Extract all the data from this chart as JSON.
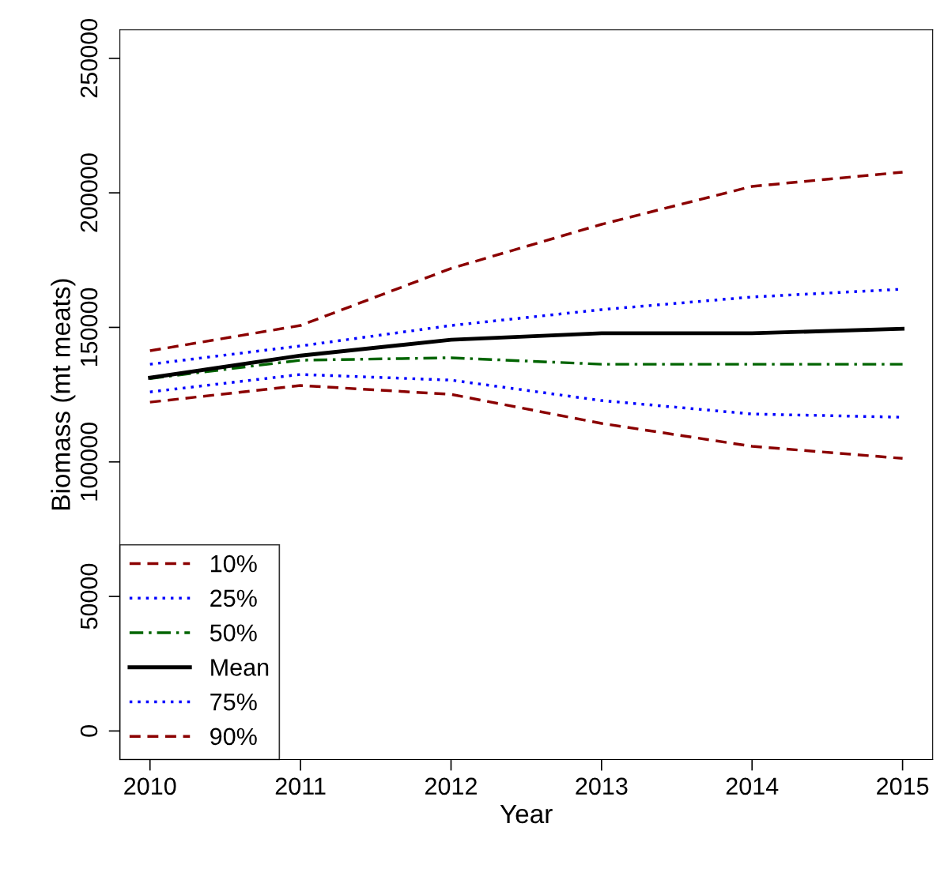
{
  "chart_data": {
    "type": "line",
    "xlabel": "Year",
    "ylabel": "Biomass (mt meats)",
    "x": [
      2010,
      2011,
      2012,
      2013,
      2014,
      2015
    ],
    "xlim": [
      2009.8,
      2015.2
    ],
    "xticks": [
      2010,
      2011,
      2012,
      2013,
      2014,
      2015
    ],
    "ylim": [
      -10600,
      260600
    ],
    "yticks": [
      0,
      50000,
      100000,
      150000,
      200000,
      250000
    ],
    "grid": false,
    "legend": "bottom left",
    "marker": "none",
    "series": [
      {
        "name": "10%",
        "color": "#8b0000",
        "line_style": "dashed",
        "values": [
          122200,
          128400,
          125100,
          114300,
          105800,
          101300
        ]
      },
      {
        "name": "25%",
        "color": "#0000ff",
        "line_style": "dotted",
        "values": [
          126000,
          132500,
          130400,
          122800,
          117800,
          116600
        ]
      },
      {
        "name": "50%",
        "color": "#006400",
        "line_style": "dashdot",
        "values": [
          131000,
          137800,
          138700,
          136300,
          136300,
          136300
        ]
      },
      {
        "name": "Mean",
        "color": "#000000",
        "line_style": "solid",
        "values": [
          131300,
          139500,
          145400,
          147800,
          147800,
          149500
        ]
      },
      {
        "name": "75%",
        "color": "#0000ff",
        "line_style": "dotted",
        "values": [
          136300,
          143100,
          150700,
          156600,
          161300,
          164200
        ]
      },
      {
        "name": "90%",
        "color": "#8b0000",
        "line_style": "dashed",
        "values": [
          141300,
          150700,
          171900,
          188300,
          202400,
          207700
        ]
      }
    ]
  }
}
